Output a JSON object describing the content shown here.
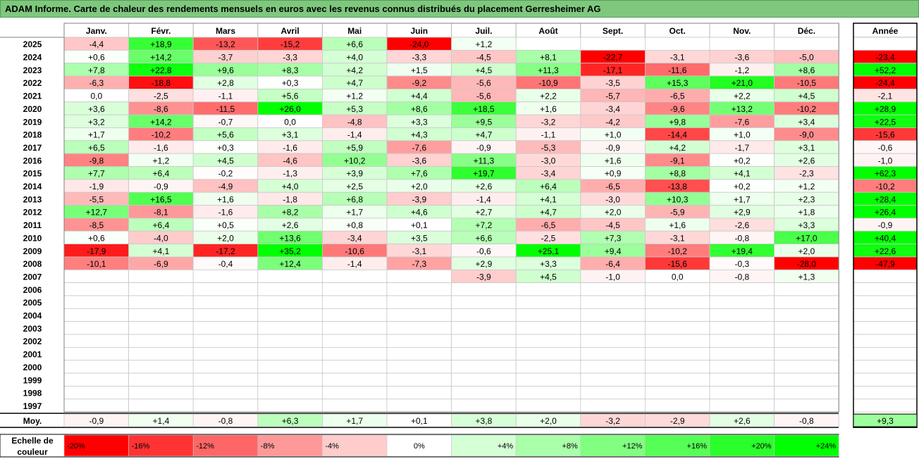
{
  "title": "ADAM Informe. Carte de chaleur des rendements mensuels en euros avec les revenus connus distribués du placement Gerresheimer AG",
  "chart_data": {
    "type": "heatmap",
    "months": [
      "Janv.",
      "Févr.",
      "Mars",
      "Avril",
      "Mai",
      "Juin",
      "Juil.",
      "Août",
      "Sept.",
      "Oct.",
      "Nov.",
      "Déc."
    ],
    "year_header": "Année",
    "rows": [
      {
        "year": "2025",
        "values": [
          -4.4,
          18.9,
          -13.2,
          -15.2,
          6.6,
          -24.0,
          1.2,
          null,
          null,
          null,
          null,
          null
        ],
        "annual": null
      },
      {
        "year": "2024",
        "values": [
          0.6,
          14.2,
          -3.7,
          -3.3,
          4.0,
          -3.3,
          -4.5,
          8.1,
          -22.7,
          -3.1,
          -3.6,
          -5.0
        ],
        "annual": -23.4
      },
      {
        "year": "2023",
        "values": [
          7.8,
          22.8,
          9.6,
          8.3,
          4.2,
          1.5,
          4.5,
          11.3,
          -17.1,
          -11.6,
          -1.2,
          8.6
        ],
        "annual": 52.2
      },
      {
        "year": "2022",
        "values": [
          -6.3,
          -18.8,
          2.8,
          0.3,
          4.7,
          -9.2,
          -5.6,
          -10.9,
          -3.5,
          15.3,
          21.0,
          -10.5
        ],
        "annual": -24.4
      },
      {
        "year": "2021",
        "values": [
          0.0,
          -2.5,
          -1.1,
          5.6,
          1.2,
          4.4,
          -5.6,
          2.2,
          -5.7,
          -6.5,
          2.2,
          4.5
        ],
        "annual": -2.1
      },
      {
        "year": "2020",
        "values": [
          3.6,
          -8.6,
          -11.5,
          26.0,
          5.3,
          8.6,
          18.5,
          1.6,
          -3.4,
          -9.6,
          13.2,
          -10.2
        ],
        "annual": 28.9
      },
      {
        "year": "2019",
        "values": [
          3.2,
          14.2,
          -0.7,
          0.0,
          -4.8,
          3.3,
          9.5,
          -3.2,
          -4.2,
          9.8,
          -7.6,
          3.4
        ],
        "annual": 22.5
      },
      {
        "year": "2018",
        "values": [
          1.7,
          -10.2,
          5.6,
          3.1,
          -1.4,
          4.3,
          4.7,
          -1.1,
          1.0,
          -14.4,
          1.0,
          -9.0
        ],
        "annual": -15.6
      },
      {
        "year": "2017",
        "values": [
          6.5,
          -1.6,
          0.3,
          -1.6,
          5.9,
          -7.6,
          -0.9,
          -5.3,
          -0.9,
          4.2,
          -1.7,
          3.1
        ],
        "annual": -0.6
      },
      {
        "year": "2016",
        "values": [
          -9.8,
          1.2,
          4.5,
          -4.6,
          10.2,
          -3.6,
          11.3,
          -3.0,
          1.6,
          -9.1,
          0.2,
          2.6
        ],
        "annual": -1.0
      },
      {
        "year": "2015",
        "values": [
          7.7,
          6.4,
          -0.2,
          -1.3,
          3.9,
          7.6,
          19.7,
          -3.4,
          0.9,
          8.8,
          4.1,
          -2.3
        ],
        "annual": 62.3
      },
      {
        "year": "2014",
        "values": [
          -1.9,
          -0.9,
          -4.9,
          4.0,
          2.5,
          2.0,
          2.6,
          6.4,
          -6.5,
          -13.8,
          0.2,
          1.2
        ],
        "annual": -10.2
      },
      {
        "year": "2013",
        "values": [
          -5.5,
          16.5,
          1.6,
          -1.8,
          6.8,
          -3.9,
          -1.4,
          4.1,
          -3.0,
          10.3,
          1.7,
          2.3
        ],
        "annual": 28.4
      },
      {
        "year": "2012",
        "values": [
          12.7,
          -8.1,
          -1.6,
          8.2,
          1.7,
          4.6,
          2.7,
          4.7,
          2.0,
          -5.9,
          2.9,
          1.8
        ],
        "annual": 26.4
      },
      {
        "year": "2011",
        "values": [
          -8.5,
          6.4,
          0.5,
          2.6,
          0.8,
          0.1,
          7.2,
          -6.5,
          -4.5,
          1.6,
          -2.6,
          3.3
        ],
        "annual": -0.9
      },
      {
        "year": "2010",
        "values": [
          0.6,
          -4.0,
          2.0,
          13.6,
          -3.4,
          3.5,
          6.6,
          -2.5,
          7.3,
          -3.1,
          -0.8,
          17.0
        ],
        "annual": 40.4
      },
      {
        "year": "2009",
        "values": [
          -17.9,
          4.1,
          -17.2,
          35.2,
          -10.6,
          -3.1,
          -0.6,
          25.1,
          9.4,
          -10.2,
          19.4,
          2.0
        ],
        "annual": 22.6
      },
      {
        "year": "2008",
        "values": [
          -10.1,
          -6.9,
          -0.4,
          12.4,
          -1.4,
          -7.3,
          2.9,
          3.3,
          -6.4,
          -15.6,
          -0.3,
          -28.0
        ],
        "annual": -47.9
      },
      {
        "year": "2007",
        "values": [
          null,
          null,
          null,
          null,
          null,
          null,
          -3.9,
          4.5,
          -1.0,
          0.0,
          -0.8,
          1.3
        ],
        "annual": null
      },
      {
        "year": "2006",
        "values": [
          null,
          null,
          null,
          null,
          null,
          null,
          null,
          null,
          null,
          null,
          null,
          null
        ],
        "annual": null
      },
      {
        "year": "2005",
        "values": [
          null,
          null,
          null,
          null,
          null,
          null,
          null,
          null,
          null,
          null,
          null,
          null
        ],
        "annual": null
      },
      {
        "year": "2004",
        "values": [
          null,
          null,
          null,
          null,
          null,
          null,
          null,
          null,
          null,
          null,
          null,
          null
        ],
        "annual": null
      },
      {
        "year": "2003",
        "values": [
          null,
          null,
          null,
          null,
          null,
          null,
          null,
          null,
          null,
          null,
          null,
          null
        ],
        "annual": null
      },
      {
        "year": "2002",
        "values": [
          null,
          null,
          null,
          null,
          null,
          null,
          null,
          null,
          null,
          null,
          null,
          null
        ],
        "annual": null
      },
      {
        "year": "2001",
        "values": [
          null,
          null,
          null,
          null,
          null,
          null,
          null,
          null,
          null,
          null,
          null,
          null
        ],
        "annual": null
      },
      {
        "year": "2000",
        "values": [
          null,
          null,
          null,
          null,
          null,
          null,
          null,
          null,
          null,
          null,
          null,
          null
        ],
        "annual": null
      },
      {
        "year": "1999",
        "values": [
          null,
          null,
          null,
          null,
          null,
          null,
          null,
          null,
          null,
          null,
          null,
          null
        ],
        "annual": null
      },
      {
        "year": "1998",
        "values": [
          null,
          null,
          null,
          null,
          null,
          null,
          null,
          null,
          null,
          null,
          null,
          null
        ],
        "annual": null
      },
      {
        "year": "1997",
        "values": [
          null,
          null,
          null,
          null,
          null,
          null,
          null,
          null,
          null,
          null,
          null,
          null
        ],
        "annual": null
      }
    ],
    "average": {
      "label": "Moy.",
      "values": [
        -0.9,
        1.4,
        -0.8,
        6.3,
        1.7,
        0.1,
        3.8,
        2.0,
        -3.2,
        -2.9,
        2.6,
        -0.8
      ],
      "annual": 9.3
    },
    "legend": {
      "label_lines": [
        "Echelle de",
        "couleur"
      ],
      "stops": [
        -20,
        -16,
        -12,
        -8,
        -4,
        0,
        4,
        8,
        12,
        16,
        20,
        24
      ],
      "labels": [
        "-20%",
        "-16%",
        "-12%",
        "-8%",
        "-4%",
        "0%",
        "+4%",
        "+8%",
        "+12%",
        "+16%",
        "+20%",
        "+24%"
      ]
    },
    "colors": {
      "negative_max": "#ff0000",
      "positive_max": "#00ff00",
      "neutral": "#ffffff"
    }
  }
}
